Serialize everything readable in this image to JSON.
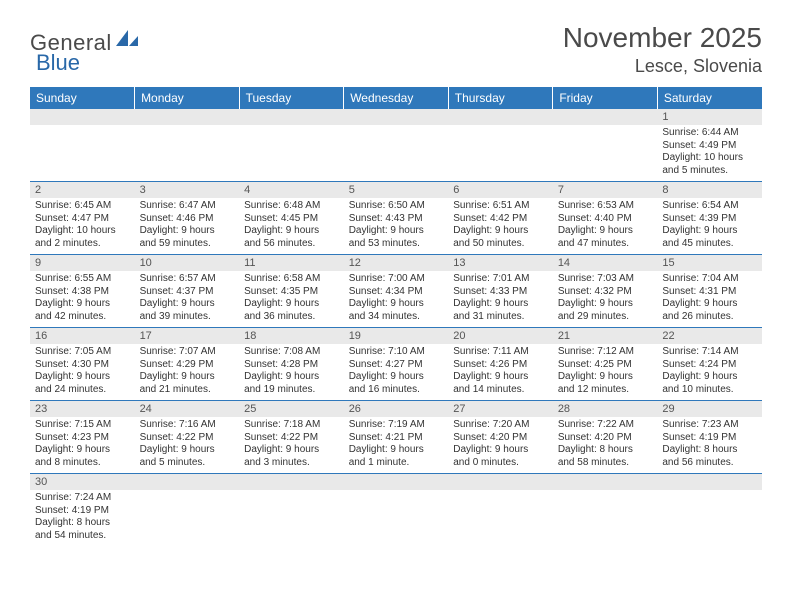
{
  "logo": {
    "part1": "General",
    "part2": "Blue"
  },
  "title": "November 2025",
  "location": "Lesce, Slovenia",
  "colors": {
    "header_bg": "#2f78bb",
    "header_text": "#ffffff",
    "daynum_bg": "#e9e9e9",
    "border": "#2f78bb",
    "text": "#333333",
    "title_text": "#4a4a4a",
    "logo_blue": "#2968a8"
  },
  "day_headers": [
    "Sunday",
    "Monday",
    "Tuesday",
    "Wednesday",
    "Thursday",
    "Friday",
    "Saturday"
  ],
  "weeks": [
    [
      {
        "n": "",
        "sr": "",
        "ss": "",
        "dl1": "",
        "dl2": ""
      },
      {
        "n": "",
        "sr": "",
        "ss": "",
        "dl1": "",
        "dl2": ""
      },
      {
        "n": "",
        "sr": "",
        "ss": "",
        "dl1": "",
        "dl2": ""
      },
      {
        "n": "",
        "sr": "",
        "ss": "",
        "dl1": "",
        "dl2": ""
      },
      {
        "n": "",
        "sr": "",
        "ss": "",
        "dl1": "",
        "dl2": ""
      },
      {
        "n": "",
        "sr": "",
        "ss": "",
        "dl1": "",
        "dl2": ""
      },
      {
        "n": "1",
        "sr": "Sunrise: 6:44 AM",
        "ss": "Sunset: 4:49 PM",
        "dl1": "Daylight: 10 hours",
        "dl2": "and 5 minutes."
      }
    ],
    [
      {
        "n": "2",
        "sr": "Sunrise: 6:45 AM",
        "ss": "Sunset: 4:47 PM",
        "dl1": "Daylight: 10 hours",
        "dl2": "and 2 minutes."
      },
      {
        "n": "3",
        "sr": "Sunrise: 6:47 AM",
        "ss": "Sunset: 4:46 PM",
        "dl1": "Daylight: 9 hours",
        "dl2": "and 59 minutes."
      },
      {
        "n": "4",
        "sr": "Sunrise: 6:48 AM",
        "ss": "Sunset: 4:45 PM",
        "dl1": "Daylight: 9 hours",
        "dl2": "and 56 minutes."
      },
      {
        "n": "5",
        "sr": "Sunrise: 6:50 AM",
        "ss": "Sunset: 4:43 PM",
        "dl1": "Daylight: 9 hours",
        "dl2": "and 53 minutes."
      },
      {
        "n": "6",
        "sr": "Sunrise: 6:51 AM",
        "ss": "Sunset: 4:42 PM",
        "dl1": "Daylight: 9 hours",
        "dl2": "and 50 minutes."
      },
      {
        "n": "7",
        "sr": "Sunrise: 6:53 AM",
        "ss": "Sunset: 4:40 PM",
        "dl1": "Daylight: 9 hours",
        "dl2": "and 47 minutes."
      },
      {
        "n": "8",
        "sr": "Sunrise: 6:54 AM",
        "ss": "Sunset: 4:39 PM",
        "dl1": "Daylight: 9 hours",
        "dl2": "and 45 minutes."
      }
    ],
    [
      {
        "n": "9",
        "sr": "Sunrise: 6:55 AM",
        "ss": "Sunset: 4:38 PM",
        "dl1": "Daylight: 9 hours",
        "dl2": "and 42 minutes."
      },
      {
        "n": "10",
        "sr": "Sunrise: 6:57 AM",
        "ss": "Sunset: 4:37 PM",
        "dl1": "Daylight: 9 hours",
        "dl2": "and 39 minutes."
      },
      {
        "n": "11",
        "sr": "Sunrise: 6:58 AM",
        "ss": "Sunset: 4:35 PM",
        "dl1": "Daylight: 9 hours",
        "dl2": "and 36 minutes."
      },
      {
        "n": "12",
        "sr": "Sunrise: 7:00 AM",
        "ss": "Sunset: 4:34 PM",
        "dl1": "Daylight: 9 hours",
        "dl2": "and 34 minutes."
      },
      {
        "n": "13",
        "sr": "Sunrise: 7:01 AM",
        "ss": "Sunset: 4:33 PM",
        "dl1": "Daylight: 9 hours",
        "dl2": "and 31 minutes."
      },
      {
        "n": "14",
        "sr": "Sunrise: 7:03 AM",
        "ss": "Sunset: 4:32 PM",
        "dl1": "Daylight: 9 hours",
        "dl2": "and 29 minutes."
      },
      {
        "n": "15",
        "sr": "Sunrise: 7:04 AM",
        "ss": "Sunset: 4:31 PM",
        "dl1": "Daylight: 9 hours",
        "dl2": "and 26 minutes."
      }
    ],
    [
      {
        "n": "16",
        "sr": "Sunrise: 7:05 AM",
        "ss": "Sunset: 4:30 PM",
        "dl1": "Daylight: 9 hours",
        "dl2": "and 24 minutes."
      },
      {
        "n": "17",
        "sr": "Sunrise: 7:07 AM",
        "ss": "Sunset: 4:29 PM",
        "dl1": "Daylight: 9 hours",
        "dl2": "and 21 minutes."
      },
      {
        "n": "18",
        "sr": "Sunrise: 7:08 AM",
        "ss": "Sunset: 4:28 PM",
        "dl1": "Daylight: 9 hours",
        "dl2": "and 19 minutes."
      },
      {
        "n": "19",
        "sr": "Sunrise: 7:10 AM",
        "ss": "Sunset: 4:27 PM",
        "dl1": "Daylight: 9 hours",
        "dl2": "and 16 minutes."
      },
      {
        "n": "20",
        "sr": "Sunrise: 7:11 AM",
        "ss": "Sunset: 4:26 PM",
        "dl1": "Daylight: 9 hours",
        "dl2": "and 14 minutes."
      },
      {
        "n": "21",
        "sr": "Sunrise: 7:12 AM",
        "ss": "Sunset: 4:25 PM",
        "dl1": "Daylight: 9 hours",
        "dl2": "and 12 minutes."
      },
      {
        "n": "22",
        "sr": "Sunrise: 7:14 AM",
        "ss": "Sunset: 4:24 PM",
        "dl1": "Daylight: 9 hours",
        "dl2": "and 10 minutes."
      }
    ],
    [
      {
        "n": "23",
        "sr": "Sunrise: 7:15 AM",
        "ss": "Sunset: 4:23 PM",
        "dl1": "Daylight: 9 hours",
        "dl2": "and 8 minutes."
      },
      {
        "n": "24",
        "sr": "Sunrise: 7:16 AM",
        "ss": "Sunset: 4:22 PM",
        "dl1": "Daylight: 9 hours",
        "dl2": "and 5 minutes."
      },
      {
        "n": "25",
        "sr": "Sunrise: 7:18 AM",
        "ss": "Sunset: 4:22 PM",
        "dl1": "Daylight: 9 hours",
        "dl2": "and 3 minutes."
      },
      {
        "n": "26",
        "sr": "Sunrise: 7:19 AM",
        "ss": "Sunset: 4:21 PM",
        "dl1": "Daylight: 9 hours",
        "dl2": "and 1 minute."
      },
      {
        "n": "27",
        "sr": "Sunrise: 7:20 AM",
        "ss": "Sunset: 4:20 PM",
        "dl1": "Daylight: 9 hours",
        "dl2": "and 0 minutes."
      },
      {
        "n": "28",
        "sr": "Sunrise: 7:22 AM",
        "ss": "Sunset: 4:20 PM",
        "dl1": "Daylight: 8 hours",
        "dl2": "and 58 minutes."
      },
      {
        "n": "29",
        "sr": "Sunrise: 7:23 AM",
        "ss": "Sunset: 4:19 PM",
        "dl1": "Daylight: 8 hours",
        "dl2": "and 56 minutes."
      }
    ],
    [
      {
        "n": "30",
        "sr": "Sunrise: 7:24 AM",
        "ss": "Sunset: 4:19 PM",
        "dl1": "Daylight: 8 hours",
        "dl2": "and 54 minutes."
      },
      {
        "n": "",
        "sr": "",
        "ss": "",
        "dl1": "",
        "dl2": ""
      },
      {
        "n": "",
        "sr": "",
        "ss": "",
        "dl1": "",
        "dl2": ""
      },
      {
        "n": "",
        "sr": "",
        "ss": "",
        "dl1": "",
        "dl2": ""
      },
      {
        "n": "",
        "sr": "",
        "ss": "",
        "dl1": "",
        "dl2": ""
      },
      {
        "n": "",
        "sr": "",
        "ss": "",
        "dl1": "",
        "dl2": ""
      },
      {
        "n": "",
        "sr": "",
        "ss": "",
        "dl1": "",
        "dl2": ""
      }
    ]
  ]
}
